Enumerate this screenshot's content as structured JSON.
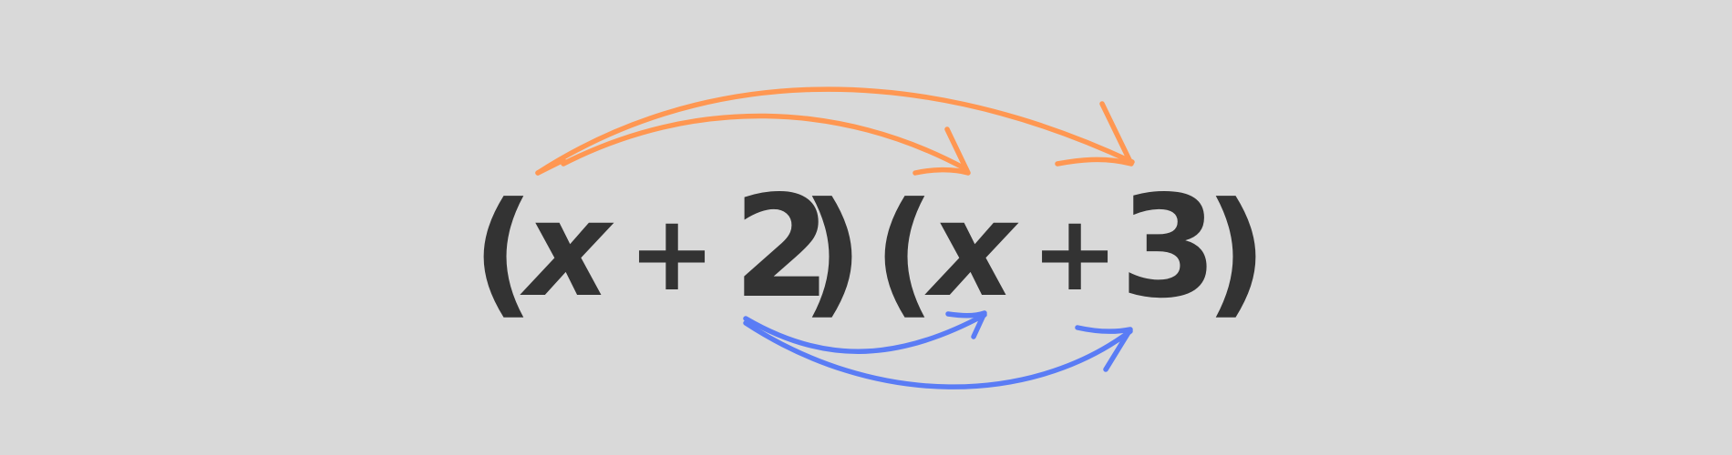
{
  "expression": {
    "first_factor": {
      "open_paren": "(",
      "variable": "x",
      "operator": "+",
      "constant": "2",
      "close_paren": ")"
    },
    "second_factor": {
      "open_paren": "(",
      "variable": "x",
      "operator": "+",
      "constant": "3",
      "close_paren": ")"
    }
  },
  "colors": {
    "background": "#d9d9d9",
    "text": "#333333",
    "orange_arrows": "#ff9752",
    "blue_arrows": "#5a7cf5"
  }
}
